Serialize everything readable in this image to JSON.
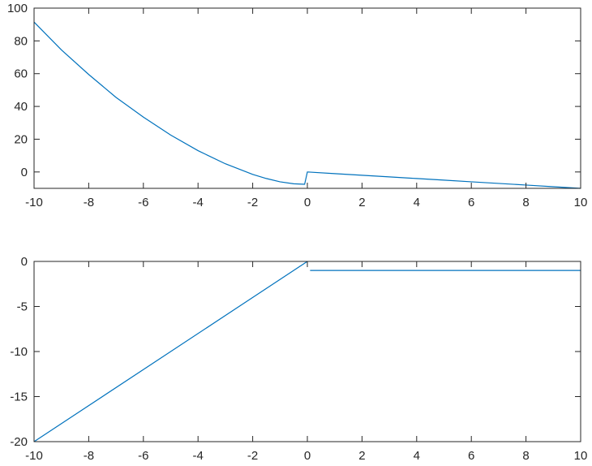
{
  "chart_data": [
    {
      "type": "line",
      "title": "",
      "xlabel": "",
      "ylabel": "",
      "xlim": [
        -10,
        10
      ],
      "ylim": [
        -10,
        100
      ],
      "xticks": [
        -10,
        -8,
        -6,
        -4,
        -2,
        0,
        2,
        4,
        6,
        8,
        10
      ],
      "yticks": [
        0,
        20,
        40,
        60,
        80,
        100
      ],
      "xtick_labels": [
        "-10",
        "-8",
        "-6",
        "-4",
        "-2",
        "0",
        "2",
        "4",
        "6",
        "8",
        "10"
      ],
      "ytick_labels": [
        "0",
        "20",
        "40",
        "60",
        "80",
        "100"
      ],
      "grid": false,
      "legend": "none",
      "series": [
        {
          "color": "#0072BD",
          "x": [
            -10,
            -9,
            -8,
            -7,
            -6,
            -5,
            -4,
            -3,
            -2,
            -1.5,
            -1,
            -0.5,
            -0.1,
            0,
            1,
            2,
            3,
            4,
            5,
            6,
            7,
            8,
            9,
            10
          ],
          "y": [
            91.5,
            74.5,
            59.5,
            45.5,
            33.5,
            22.5,
            13.0,
            5.0,
            -1.5,
            -4.0,
            -6.0,
            -7.2,
            -7.5,
            0,
            -1,
            -2,
            -3,
            -4,
            -5,
            -6,
            -7,
            -8,
            -9,
            -10
          ]
        }
      ]
    },
    {
      "type": "line",
      "title": "",
      "xlabel": "",
      "ylabel": "",
      "xlim": [
        -10,
        10
      ],
      "ylim": [
        -20,
        0
      ],
      "xticks": [
        -10,
        -8,
        -6,
        -4,
        -2,
        0,
        2,
        4,
        6,
        8,
        10
      ],
      "yticks": [
        -20,
        -15,
        -10,
        -5,
        0
      ],
      "xtick_labels": [
        "-10",
        "-8",
        "-6",
        "-4",
        "-2",
        "0",
        "2",
        "4",
        "6",
        "8",
        "10"
      ],
      "ytick_labels": [
        "-20",
        "-15",
        "-10",
        "-5",
        "0"
      ],
      "grid": false,
      "legend": "none",
      "series": [
        {
          "color": "#0072BD",
          "segments": [
            {
              "x": [
                -10,
                0
              ],
              "y": [
                -20,
                0
              ]
            },
            {
              "x": [
                0.1,
                10
              ],
              "y": [
                -1,
                -1
              ]
            }
          ]
        }
      ]
    }
  ]
}
